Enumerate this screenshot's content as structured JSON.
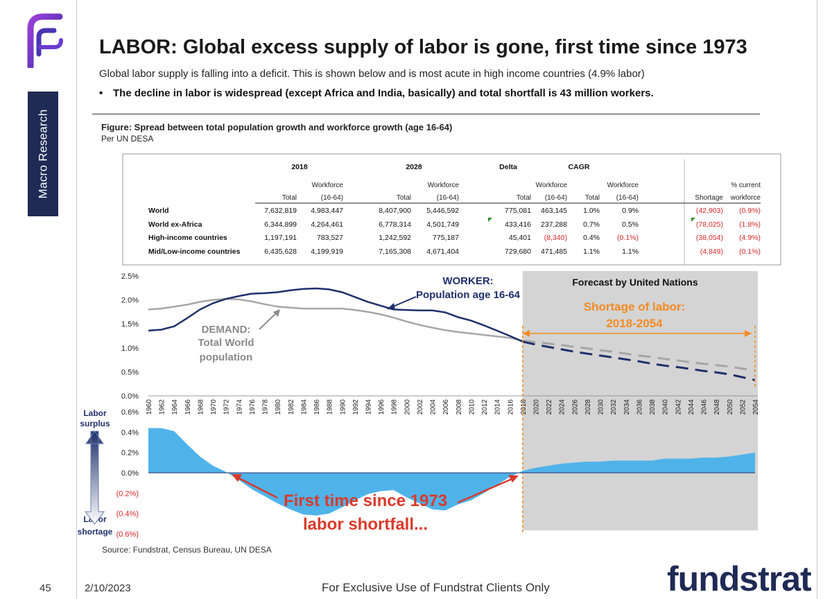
{
  "sidebar": {
    "label": "Macro Research",
    "logo_icon": "fs-logo-icon"
  },
  "header": {
    "title": "LABOR: Global excess supply of labor is gone, first time since 1973",
    "subtitle": "Global labor supply is falling into a deficit.  This is shown below and is most acute in high income countries (4.9% labor)",
    "bullet": "The decline in labor is widespread (except Africa and India, basically) and total shortfall is 43 million workers."
  },
  "figure": {
    "title": "Figure: Spread between total population growth and workforce growth (age 16-64)",
    "subtitle": "Per UN DESA"
  },
  "table": {
    "group_headers": [
      "2018",
      "2028",
      "Delta",
      "CAGR"
    ],
    "col_headers_top": [
      "",
      "Workforce",
      "",
      "Workforce",
      "",
      "Workforce",
      "",
      "Workforce",
      "",
      "% current"
    ],
    "col_headers_bottom": [
      "Total",
      "(16-64)",
      "Total",
      "(16-64)",
      "Total",
      "(16-64)",
      "Total",
      "(16-64)",
      "Shortage",
      "workforce"
    ],
    "rows": [
      {
        "label": "World",
        "values": [
          "7,632,819",
          "4,983,447",
          "8,407,900",
          "5,446,592",
          "775,081",
          "463,145",
          "1.0%",
          "0.9%",
          "(42,903)",
          "(0.9%)"
        ]
      },
      {
        "label": "World ex-Africa",
        "values": [
          "6,344,899",
          "4,264,461",
          "6,778,314",
          "4,501,749",
          "433,416",
          "237,288",
          "0.7%",
          "0.5%",
          "(78,025)",
          "(1.8%)"
        ]
      },
      {
        "label": "High-income countries",
        "values": [
          "1,197,191",
          "783,527",
          "1,242,592",
          "775,187",
          "45,401",
          "(8,340)",
          "0.4%",
          "(0.1%)",
          "(38,054)",
          "(4.9%)"
        ]
      },
      {
        "label": "Mid/Low-income countries",
        "values": [
          "6,435,628",
          "4,199,919",
          "7,165,308",
          "4,671,404",
          "729,680",
          "471,485",
          "1.1%",
          "1.1%",
          "(4,849)",
          "(0.1%)"
        ]
      }
    ],
    "negative_color": "#d62728"
  },
  "chart_data": [
    {
      "type": "line",
      "x": [
        1960,
        1962,
        1964,
        1966,
        1968,
        1970,
        1972,
        1974,
        1976,
        1978,
        1980,
        1982,
        1984,
        1986,
        1988,
        1990,
        1992,
        1994,
        1996,
        1998,
        2000,
        2002,
        2004,
        2006,
        2008,
        2010,
        2012,
        2014,
        2016,
        2018,
        2020,
        2022,
        2024,
        2026,
        2028,
        2030,
        2032,
        2034,
        2036,
        2038,
        2040,
        2042,
        2044,
        2046,
        2048,
        2050,
        2052,
        2054
      ],
      "x_tick_labels": [
        "1960",
        "1962",
        "1964",
        "1966",
        "1968",
        "1970",
        "1972",
        "1974",
        "1976",
        "1978",
        "1980",
        "1982",
        "1984",
        "1986",
        "1988",
        "1990",
        "1992",
        "1994",
        "1996",
        "1998",
        "2000",
        "2002",
        "2004",
        "2006",
        "2008",
        "2010",
        "2012",
        "2014",
        "2016",
        "2018",
        "2020",
        "2022",
        "2024",
        "2026",
        "2028",
        "2030",
        "2032",
        "2034",
        "2036",
        "2038",
        "2040",
        "2042",
        "2044",
        "2046",
        "2048",
        "2050",
        "2052",
        "2054"
      ],
      "ylim": [
        0,
        2.5
      ],
      "y_ticks": [
        0,
        0.5,
        1.0,
        1.5,
        2.0,
        2.5
      ],
      "y_tick_labels": [
        "0.0%",
        "0.5%",
        "1.0%",
        "1.5%",
        "2.0%",
        "2.5%"
      ],
      "forecast_start": 2018,
      "forecast_label": "Forecast by United Nations",
      "shortage_label_1": "Shortage of labor:",
      "shortage_label_2": "2018-2054",
      "series": [
        {
          "name": "Population age 16-64",
          "color": "#1f2f6b",
          "values": [
            1.36,
            1.38,
            1.45,
            1.62,
            1.8,
            1.93,
            2.02,
            2.08,
            2.13,
            2.14,
            2.16,
            2.2,
            2.23,
            2.24,
            2.22,
            2.16,
            2.06,
            1.96,
            1.88,
            1.8,
            1.79,
            1.78,
            1.78,
            1.74,
            1.64,
            1.57,
            1.47,
            1.36,
            1.25,
            1.13,
            1.07,
            1.02,
            0.97,
            0.92,
            0.88,
            0.84,
            0.8,
            0.76,
            0.72,
            0.67,
            0.63,
            0.6,
            0.56,
            0.52,
            0.49,
            0.45,
            0.39,
            0.33
          ]
        },
        {
          "name": "Total World population",
          "color": "#a6a6a6",
          "values": [
            1.8,
            1.82,
            1.86,
            1.9,
            1.96,
            2.0,
            2.02,
            2.01,
            1.97,
            1.91,
            1.86,
            1.84,
            1.82,
            1.82,
            1.82,
            1.82,
            1.79,
            1.75,
            1.7,
            1.63,
            1.55,
            1.48,
            1.42,
            1.37,
            1.33,
            1.3,
            1.27,
            1.24,
            1.21,
            1.15,
            1.12,
            1.09,
            1.06,
            1.02,
            0.99,
            0.95,
            0.92,
            0.88,
            0.84,
            0.81,
            0.77,
            0.74,
            0.7,
            0.67,
            0.64,
            0.61,
            0.57,
            0.53
          ]
        }
      ],
      "annotation_worker_1": "WORKER:",
      "annotation_worker_2": "Population age 16-64",
      "annotation_demand_1": "DEMAND:",
      "annotation_demand_2": "Total World",
      "annotation_demand_3": "population"
    },
    {
      "type": "area",
      "x": [
        1960,
        1962,
        1964,
        1966,
        1968,
        1970,
        1972,
        1974,
        1976,
        1978,
        1980,
        1982,
        1984,
        1986,
        1988,
        1990,
        1992,
        1994,
        1996,
        1998,
        2000,
        2002,
        2004,
        2006,
        2008,
        2010,
        2012,
        2014,
        2016,
        2018,
        2020,
        2022,
        2024,
        2026,
        2028,
        2030,
        2032,
        2034,
        2036,
        2038,
        2040,
        2042,
        2044,
        2046,
        2048,
        2050,
        2052,
        2054
      ],
      "ylim": [
        -0.6,
        0.6
      ],
      "y_ticks": [
        0.6,
        0.4,
        0.2,
        0.0,
        -0.2,
        -0.4,
        -0.6
      ],
      "y_tick_labels": [
        "(0.6%)",
        "(0.4%)",
        "(0.2%)",
        "0.0%",
        "0.2%",
        "0.4%",
        "0.6%"
      ],
      "series": [
        {
          "name": "Labor surplus / shortage",
          "color": "#4fb3ea",
          "values": [
            -0.44,
            -0.44,
            -0.41,
            -0.28,
            -0.16,
            -0.07,
            -0.01,
            0.07,
            0.16,
            0.23,
            0.3,
            0.36,
            0.41,
            0.42,
            0.4,
            0.34,
            0.27,
            0.21,
            0.18,
            0.17,
            0.24,
            0.3,
            0.36,
            0.37,
            0.31,
            0.27,
            0.2,
            0.12,
            0.04,
            -0.02,
            -0.05,
            -0.07,
            -0.09,
            -0.1,
            -0.11,
            -0.11,
            -0.12,
            -0.12,
            -0.12,
            -0.12,
            -0.14,
            -0.14,
            -0.14,
            -0.15,
            -0.15,
            -0.16,
            -0.18,
            -0.2
          ]
        }
      ],
      "label_surplus_1": "Labor",
      "label_surplus_2": "surplus",
      "label_shortage_1": "Labor",
      "label_shortage_2": "shortage",
      "annotation_1": "First time since 1973",
      "annotation_2": "labor shortfall..."
    }
  ],
  "source": "Source: Fundstrat, Census Bureau, UN DESA",
  "footer": {
    "page": "45",
    "date": "2/10/2023",
    "note": "For Exclusive Use of Fundstrat Clients Only",
    "brand": "fundstrat"
  }
}
